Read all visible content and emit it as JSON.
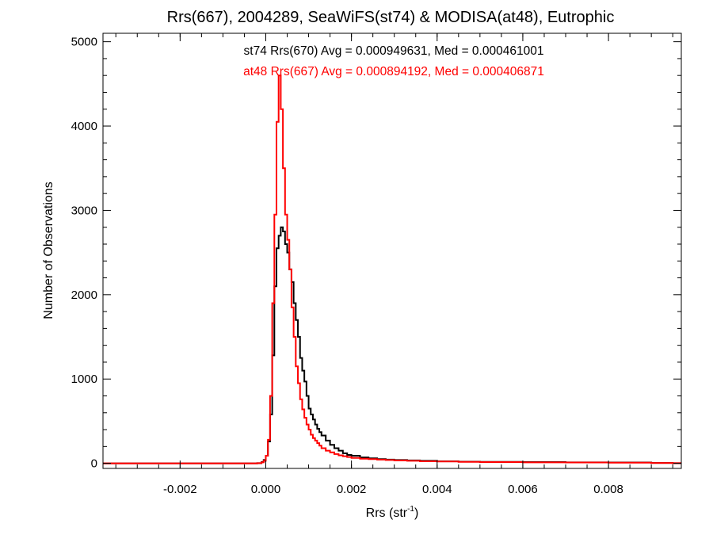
{
  "chart_data": {
    "type": "histogram-step",
    "title": "Rrs(667), 2004289, SeaWiFS(st74) & MODISA(at48), Eutrophic",
    "xlabel": "Rrs (str",
    "xlabel_superscript": "-1",
    "xlabel_close": ")",
    "ylabel": "Number of Observations",
    "xlim": [
      -0.0038,
      0.0097
    ],
    "ylim": [
      -60,
      5100
    ],
    "x_ticks": [
      -0.002,
      0.0,
      0.002,
      0.004,
      0.006,
      0.008
    ],
    "x_tick_labels": [
      "-0.002",
      "0.000",
      "0.002",
      "0.004",
      "0.006",
      "0.008"
    ],
    "y_ticks": [
      0,
      1000,
      2000,
      3000,
      4000,
      5000
    ],
    "y_tick_labels": [
      "0",
      "1000",
      "2000",
      "3000",
      "4000",
      "5000"
    ],
    "annotations": [
      {
        "text": "st74 Rrs(670) Avg = 0.000949631, Med = 0.000461001",
        "color": "#000000"
      },
      {
        "text": "at48 Rrs(667) Avg = 0.000894192, Med = 0.000406871",
        "color": "#ff0000"
      }
    ],
    "series": [
      {
        "color": "#000000",
        "x": [
          -0.0002,
          -0.0001,
          -5e-05,
          0.0,
          5e-05,
          0.0001,
          0.00015,
          0.0002,
          0.00025,
          0.0003,
          0.00035,
          0.0004,
          0.00045,
          0.0005,
          0.00055,
          0.0006,
          0.00065,
          0.0007,
          0.00075,
          0.0008,
          0.00085,
          0.0009,
          0.00095,
          0.001,
          0.00105,
          0.0011,
          0.00115,
          0.0012,
          0.00125,
          0.0013,
          0.0014,
          0.0015,
          0.0016,
          0.0017,
          0.0018,
          0.0019,
          0.002,
          0.0022,
          0.0024,
          0.0026,
          0.0028,
          0.003,
          0.0033,
          0.0036,
          0.004,
          0.0045,
          0.005,
          0.006,
          0.007,
          0.008,
          0.009
        ],
        "values": [
          2,
          15,
          40,
          90,
          260,
          580,
          1280,
          2100,
          2550,
          2700,
          2800,
          2750,
          2600,
          2500,
          2300,
          2150,
          1900,
          1700,
          1500,
          1250,
          1100,
          970,
          800,
          650,
          580,
          520,
          460,
          410,
          370,
          330,
          270,
          220,
          180,
          150,
          120,
          100,
          90,
          70,
          60,
          50,
          45,
          40,
          35,
          30,
          25,
          20,
          18,
          15,
          12,
          10,
          5
        ]
      },
      {
        "color": "#ff0000",
        "x": [
          -0.0002,
          -0.0001,
          -5e-05,
          0.0,
          5e-05,
          0.0001,
          0.00015,
          0.0002,
          0.00025,
          0.0003,
          0.00035,
          0.0004,
          0.00045,
          0.0005,
          0.00055,
          0.0006,
          0.00065,
          0.0007,
          0.00075,
          0.0008,
          0.00085,
          0.0009,
          0.00095,
          0.001,
          0.00105,
          0.0011,
          0.00115,
          0.0012,
          0.00125,
          0.0013,
          0.0014,
          0.0015,
          0.0016,
          0.0017,
          0.0018,
          0.0019,
          0.002,
          0.0022,
          0.0024,
          0.0026,
          0.0028,
          0.003,
          0.0033,
          0.0036,
          0.004,
          0.0045,
          0.005,
          0.006,
          0.007,
          0.008,
          0.009
        ],
        "values": [
          2,
          12,
          30,
          90,
          280,
          800,
          1900,
          2950,
          4050,
          4600,
          4200,
          3500,
          2950,
          2650,
          2300,
          1850,
          1500,
          1150,
          950,
          760,
          640,
          540,
          460,
          400,
          340,
          300,
          270,
          240,
          210,
          180,
          150,
          130,
          110,
          95,
          85,
          75,
          65,
          55,
          50,
          45,
          40,
          35,
          30,
          25,
          22,
          18,
          15,
          12,
          10,
          8,
          5
        ]
      }
    ]
  }
}
